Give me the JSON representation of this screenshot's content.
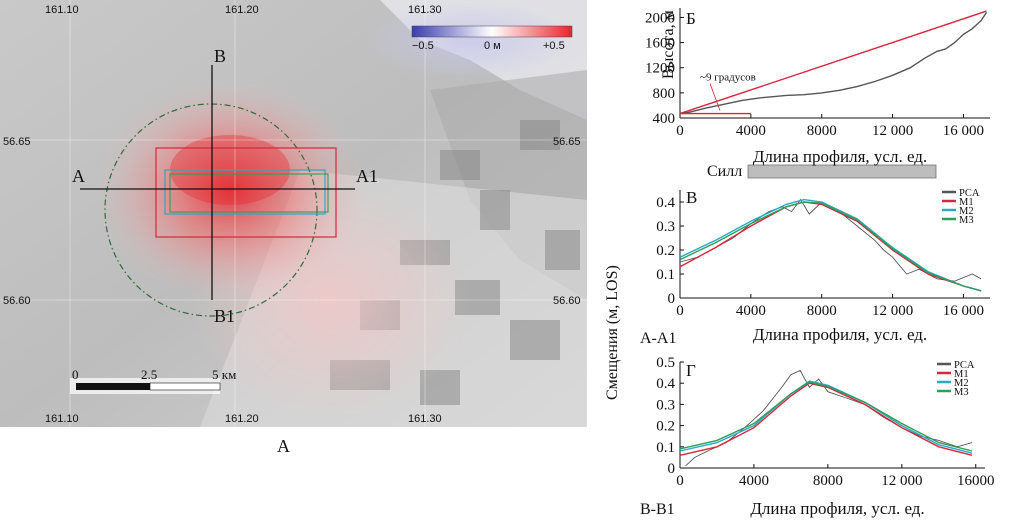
{
  "figure": {
    "map_panel": {
      "label": "А",
      "lon_ticks_top": [
        "161.10",
        "161.20",
        "161.30"
      ],
      "lon_ticks_bottom": [
        "161.10",
        "161.20",
        "161.30"
      ],
      "lat_ticks_left": [
        "56.65",
        "56.60"
      ],
      "lat_ticks_right": [
        "56.65",
        "56.60"
      ],
      "profile_labels": {
        "a": "А",
        "a1": "А1",
        "b": "В",
        "b1": "В1"
      },
      "colorbar": {
        "min": "−0.5",
        "mid": "0 м",
        "max": "+0.5",
        "colors": [
          "#3b3bb0",
          "#ffffff",
          "#e8232b"
        ]
      },
      "scalebar": {
        "t0": "0",
        "t1": "2.5",
        "t2": "5 км"
      }
    },
    "sill_label": "Силл",
    "chart_data": [
      {
        "type": "line",
        "panel_label": "Б",
        "ylabel": "Высота, м",
        "xlabel": "Длина профиля, усл. ед.",
        "xlim": [
          0,
          17500
        ],
        "ylim": [
          400,
          2150
        ],
        "xticks": [
          0,
          4000,
          8000,
          12000,
          16000
        ],
        "xtick_labels": [
          "0",
          "4000",
          "8000",
          "12 000",
          "16 000"
        ],
        "yticks": [
          400,
          800,
          1200,
          1600,
          2000
        ],
        "ytick_labels": [
          "400",
          "800",
          "1200",
          "1600",
          "2000"
        ],
        "annotation": "~9 градусов",
        "series": [
          {
            "color": "#555555",
            "x": [
              0,
              500,
              1500,
              2500,
              3500,
              4500,
              6000,
              7000,
              8000,
              9000,
              10000,
              11000,
              12000,
              13000,
              13800,
              14500,
              15000,
              15500,
              16000,
              16500,
              17000,
              17300
            ],
            "y": [
              470,
              490,
              560,
              620,
              680,
              720,
              760,
              770,
              800,
              840,
              900,
              980,
              1080,
              1200,
              1350,
              1460,
              1500,
              1600,
              1730,
              1820,
              1950,
              2080
            ]
          },
          {
            "color": "#d7263d",
            "x": [
              0,
              17300
            ],
            "y": [
              470,
              2100
            ]
          },
          {
            "color": "#d7263d",
            "x": [
              0,
              4000
            ],
            "y": [
              470,
              470
            ]
          }
        ]
      },
      {
        "type": "line",
        "panel_label": "В",
        "ylabel": "Смещения (м, LOS)",
        "xlabel": "Длина профиля, усл. ед.",
        "profile": "А-А1",
        "xlim": [
          0,
          17500
        ],
        "ylim": [
          0,
          0.45
        ],
        "xticks": [
          0,
          4000,
          8000,
          12000,
          16000
        ],
        "xtick_labels": [
          "0",
          "4000",
          "8000",
          "12 000",
          "16 000"
        ],
        "yticks": [
          0,
          0.1,
          0.2,
          0.3,
          0.4
        ],
        "ytick_labels": [
          "0",
          "0.1",
          "0.2",
          "0.3",
          "0.4"
        ],
        "series": [
          {
            "name": "PCA",
            "color": "#555555",
            "x": [
              0,
              1000,
              2000,
              3000,
              4000,
              5000,
              5800,
              6300,
              6800,
              7300,
              8000,
              9000,
              10000,
              11000,
              11500,
              12000,
              12800,
              13500,
              14500,
              15500,
              16500,
              17000
            ],
            "y": [
              0.15,
              0.17,
              0.21,
              0.25,
              0.31,
              0.36,
              0.38,
              0.36,
              0.41,
              0.35,
              0.4,
              0.36,
              0.3,
              0.24,
              0.2,
              0.17,
              0.1,
              0.12,
              0.08,
              0.07,
              0.1,
              0.08
            ]
          },
          {
            "name": "М1",
            "color": "#d7263d",
            "x": [
              0,
              2000,
              4000,
              6000,
              7000,
              8000,
              10000,
              12000,
              14000,
              16000,
              17000
            ],
            "y": [
              0.13,
              0.21,
              0.3,
              0.38,
              0.4,
              0.39,
              0.32,
              0.2,
              0.1,
              0.05,
              0.03
            ]
          },
          {
            "name": "М2",
            "color": "#2aa8c4",
            "x": [
              0,
              2000,
              4000,
              6000,
              7000,
              8000,
              10000,
              12000,
              14000,
              16000,
              17000
            ],
            "y": [
              0.17,
              0.24,
              0.32,
              0.39,
              0.41,
              0.4,
              0.33,
              0.21,
              0.11,
              0.05,
              0.03
            ]
          },
          {
            "name": "М3",
            "color": "#2e9e5a",
            "x": [
              0,
              2000,
              4000,
              6000,
              7000,
              8000,
              10000,
              12000,
              14000,
              16000,
              17000
            ],
            "y": [
              0.16,
              0.23,
              0.31,
              0.38,
              0.4,
              0.395,
              0.325,
              0.205,
              0.105,
              0.05,
              0.03
            ]
          }
        ]
      },
      {
        "type": "line",
        "panel_label": "Г",
        "ylabel": "",
        "xlabel": "Длина профиля, усл. ед.",
        "profile": "В-В1",
        "xlim": [
          0,
          16500
        ],
        "ylim": [
          0,
          0.5
        ],
        "xticks": [
          0,
          4000,
          8000,
          12000,
          16000
        ],
        "xtick_labels": [
          "0",
          "4000",
          "8000",
          "12 000",
          "16000"
        ],
        "yticks": [
          0,
          0.1,
          0.2,
          0.3,
          0.4,
          0.5
        ],
        "ytick_labels": [
          "0",
          "0.1",
          "0.2",
          "0.3",
          "0.4",
          "0.5"
        ],
        "series": [
          {
            "name": "PCA",
            "color": "#555555",
            "x": [
              300,
              800,
              1500,
              2500,
              3500,
              4500,
              5500,
              6000,
              6500,
              7000,
              7500,
              8000,
              9000,
              10000,
              11000,
              12000,
              13000,
              14000,
              15000,
              15800
            ],
            "y": [
              0.01,
              0.05,
              0.08,
              0.12,
              0.19,
              0.27,
              0.38,
              0.44,
              0.46,
              0.38,
              0.42,
              0.36,
              0.33,
              0.3,
              0.24,
              0.19,
              0.15,
              0.13,
              0.1,
              0.12
            ]
          },
          {
            "name": "М1",
            "color": "#d7263d",
            "x": [
              0,
              2000,
              4000,
              6000,
              7000,
              8000,
              10000,
              12000,
              14000,
              15800
            ],
            "y": [
              0.06,
              0.1,
              0.19,
              0.34,
              0.4,
              0.38,
              0.3,
              0.19,
              0.1,
              0.06
            ]
          },
          {
            "name": "М2",
            "color": "#2aa8c4",
            "x": [
              0,
              2000,
              4000,
              6000,
              7000,
              8000,
              10000,
              12000,
              14000,
              15800
            ],
            "y": [
              0.08,
              0.12,
              0.2,
              0.35,
              0.41,
              0.39,
              0.31,
              0.2,
              0.11,
              0.07
            ]
          },
          {
            "name": "М3",
            "color": "#2e9e5a",
            "x": [
              0,
              2000,
              4000,
              6000,
              7000,
              8000,
              10000,
              12000,
              14000,
              15800
            ],
            "y": [
              0.09,
              0.13,
              0.21,
              0.35,
              0.405,
              0.385,
              0.31,
              0.21,
              0.12,
              0.08
            ]
          }
        ]
      }
    ]
  }
}
